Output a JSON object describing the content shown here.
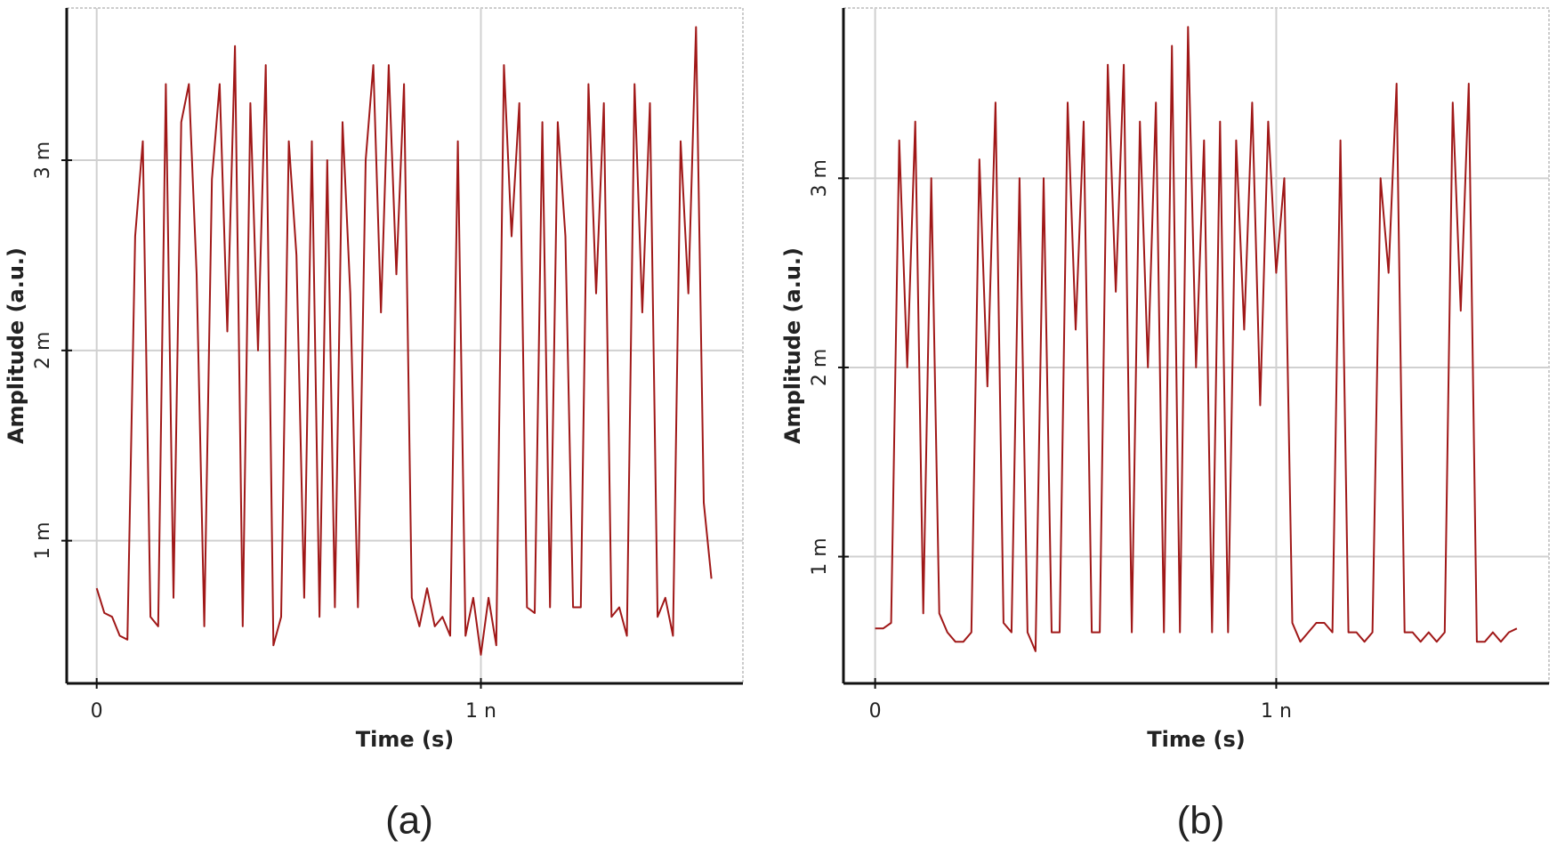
{
  "chart_data": [
    {
      "type": "line",
      "caption": "(a)",
      "x_label": "Time (s)",
      "y_label": "Amplitude (a.u.)",
      "x": [
        0,
        2e-11,
        4e-11,
        6e-11,
        8e-11,
        1e-10,
        1.2e-10,
        1.4e-10,
        1.6e-10,
        1.8e-10,
        2e-10,
        2.2e-10,
        2.4e-10,
        2.6e-10,
        2.8e-10,
        3e-10,
        3.2e-10,
        3.4e-10,
        3.6e-10,
        3.8e-10,
        4e-10,
        4.2e-10,
        4.4e-10,
        4.6e-10,
        4.8e-10,
        5e-10,
        5.2e-10,
        5.4e-10,
        5.6e-10,
        5.8e-10,
        6e-10,
        6.2e-10,
        6.4e-10,
        6.6e-10,
        6.8e-10,
        7e-10,
        7.2e-10,
        7.4e-10,
        7.6e-10,
        7.8e-10,
        8e-10,
        8.2e-10,
        8.4e-10,
        8.6e-10,
        8.8e-10,
        9e-10,
        9.2e-10,
        9.4e-10,
        9.6e-10,
        9.8e-10,
        1e-09,
        1.02e-09,
        1.04e-09,
        1.06e-09,
        1.08e-09,
        1.1e-09,
        1.12e-09,
        1.14e-09,
        1.16e-09,
        1.18e-09,
        1.2e-09,
        1.22e-09,
        1.24e-09,
        1.26e-09,
        1.28e-09,
        1.3e-09,
        1.32e-09,
        1.34e-09,
        1.36e-09,
        1.38e-09,
        1.4e-09,
        1.42e-09,
        1.44e-09,
        1.46e-09,
        1.48e-09,
        1.5e-09,
        1.52e-09,
        1.54e-09,
        1.56e-09,
        1.58e-09,
        1.6e-09
      ],
      "series": [
        {
          "color": "#a01818",
          "values": [
            0.00075,
            0.00062,
            0.0006,
            0.0005,
            0.00048,
            0.0026,
            0.0031,
            0.0006,
            0.00055,
            0.0034,
            0.0007,
            0.0032,
            0.0034,
            0.0024,
            0.00055,
            0.0029,
            0.0034,
            0.0021,
            0.0036,
            0.00055,
            0.0033,
            0.002,
            0.0035,
            0.00045,
            0.0006,
            0.0031,
            0.0025,
            0.0007,
            0.0031,
            0.0006,
            0.003,
            0.00065,
            0.0032,
            0.0023,
            0.00065,
            0.003,
            0.0035,
            0.0022,
            0.0035,
            0.0024,
            0.0034,
            0.0007,
            0.00055,
            0.00075,
            0.00055,
            0.0006,
            0.0005,
            0.0031,
            0.0005,
            0.0007,
            0.0004,
            0.0007,
            0.00045,
            0.0035,
            0.0026,
            0.0033,
            0.00065,
            0.00062,
            0.0032,
            0.00065,
            0.0032,
            0.0026,
            0.00065,
            0.00065,
            0.0034,
            0.0023,
            0.0033,
            0.0006,
            0.00065,
            0.0005,
            0.0034,
            0.0022,
            0.0033,
            0.0006,
            0.0007,
            0.0005,
            0.0031,
            0.0023,
            0.0037,
            0.0012,
            0.0008
          ]
        }
      ],
      "xlim": [
        -7.8e-11,
        1.682e-09
      ],
      "ylim": [
        0.00025,
        0.0038
      ],
      "xticks": [
        0,
        {
          "value": 1e-09,
          "label": "1 n"
        }
      ],
      "yticks": [
        {
          "value": 0.001,
          "label": "1 m"
        },
        {
          "value": 0.002,
          "label": "2 m"
        },
        {
          "value": 0.003,
          "label": "3 m"
        }
      ],
      "grid": true
    },
    {
      "type": "line",
      "caption": "(b)",
      "x_label": "Time (s)",
      "y_label": "Amplitude (a.u.)",
      "x": [
        0,
        2e-11,
        4e-11,
        6e-11,
        8e-11,
        1e-10,
        1.2e-10,
        1.4e-10,
        1.6e-10,
        1.8e-10,
        2e-10,
        2.2e-10,
        2.4e-10,
        2.6e-10,
        2.8e-10,
        3e-10,
        3.2e-10,
        3.4e-10,
        3.6e-10,
        3.8e-10,
        4e-10,
        4.2e-10,
        4.4e-10,
        4.6e-10,
        4.8e-10,
        5e-10,
        5.2e-10,
        5.4e-10,
        5.6e-10,
        5.8e-10,
        6e-10,
        6.2e-10,
        6.4e-10,
        6.6e-10,
        6.8e-10,
        7e-10,
        7.2e-10,
        7.4e-10,
        7.6e-10,
        7.8e-10,
        8e-10,
        8.2e-10,
        8.4e-10,
        8.6e-10,
        8.8e-10,
        9e-10,
        9.2e-10,
        9.4e-10,
        9.6e-10,
        9.8e-10,
        1e-09,
        1.02e-09,
        1.04e-09,
        1.06e-09,
        1.08e-09,
        1.1e-09,
        1.12e-09,
        1.14e-09,
        1.16e-09,
        1.18e-09,
        1.2e-09,
        1.22e-09,
        1.24e-09,
        1.26e-09,
        1.28e-09,
        1.3e-09,
        1.32e-09,
        1.34e-09,
        1.36e-09,
        1.38e-09,
        1.4e-09,
        1.42e-09,
        1.44e-09,
        1.46e-09,
        1.48e-09,
        1.5e-09,
        1.52e-09,
        1.54e-09,
        1.56e-09,
        1.58e-09,
        1.6e-09
      ],
      "series": [
        {
          "color": "#a01818",
          "values": [
            0.00062,
            0.00062,
            0.00065,
            0.0032,
            0.002,
            0.0033,
            0.0007,
            0.003,
            0.0007,
            0.0006,
            0.00055,
            0.00055,
            0.0006,
            0.0031,
            0.0019,
            0.0034,
            0.00065,
            0.0006,
            0.003,
            0.0006,
            0.0005,
            0.003,
            0.0006,
            0.0006,
            0.0034,
            0.0022,
            0.0033,
            0.0006,
            0.0006,
            0.0036,
            0.0024,
            0.0036,
            0.0006,
            0.0033,
            0.002,
            0.0034,
            0.0006,
            0.0037,
            0.0006,
            0.0038,
            0.002,
            0.0032,
            0.0006,
            0.0033,
            0.0006,
            0.0032,
            0.0022,
            0.0034,
            0.0018,
            0.0033,
            0.0025,
            0.003,
            0.00065,
            0.00055,
            0.0006,
            0.00065,
            0.00065,
            0.0006,
            0.0032,
            0.0006,
            0.0006,
            0.00055,
            0.0006,
            0.003,
            0.0025,
            0.0035,
            0.0006,
            0.0006,
            0.00055,
            0.0006,
            0.00055,
            0.0006,
            0.0034,
            0.0023,
            0.0035,
            0.00055,
            0.00055,
            0.0006,
            0.00055,
            0.0006,
            0.00062
          ]
        }
      ],
      "xlim": [
        -7.9e-11,
        1.68e-09
      ],
      "ylim": [
        0.00033,
        0.0039
      ],
      "xticks": [
        0,
        {
          "value": 1e-09,
          "label": "1 n"
        }
      ],
      "yticks": [
        {
          "value": 0.001,
          "label": "1 m"
        },
        {
          "value": 0.002,
          "label": "2 m"
        },
        {
          "value": 0.003,
          "label": "3 m"
        }
      ],
      "grid": true
    }
  ]
}
